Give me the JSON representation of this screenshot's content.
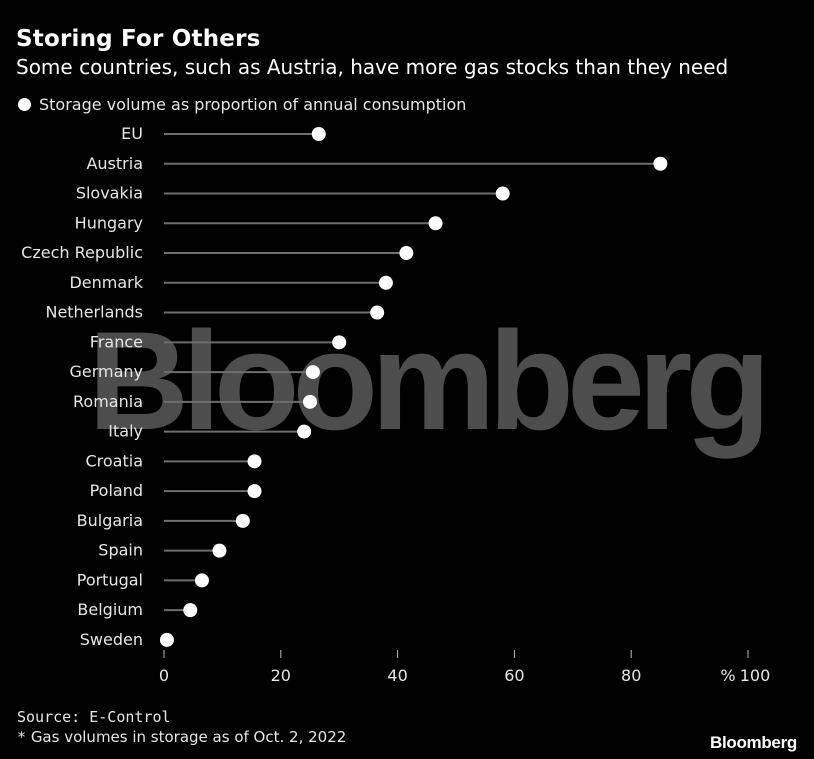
{
  "header": {
    "title": "Storing For Others",
    "subtitle": "Some countries, such as Austria, have more gas stocks than they need"
  },
  "legend": {
    "label": "Storage volume as proportion of annual consumption"
  },
  "footer": {
    "source": "Source: E-Control",
    "footnote_mark": "*",
    "footnote_text": "Gas volumes in storage as of Oct. 2, 2022",
    "brand": "Bloomberg"
  },
  "watermark": "Bloomberg",
  "colors": {
    "background": "#000000",
    "marker": "#ffffff",
    "stem": "#6e6e6e",
    "text": "#e6e6e6"
  },
  "chart_data": {
    "type": "lollipop",
    "title": "Storing For Others",
    "subtitle": "Some countries, such as Austria, have more gas stocks than they need",
    "series": [
      {
        "name": "Storage volume as proportion of annual consumption"
      }
    ],
    "categories": [
      "EU",
      "Austria",
      "Slovakia",
      "Hungary",
      "Czech Republic",
      "Denmark",
      "Netherlands",
      "France",
      "Germany",
      "Romania",
      "Italy",
      "Croatia",
      "Poland",
      "Bulgaria",
      "Spain",
      "Portugal",
      "Belgium",
      "Sweden"
    ],
    "values": [
      26.5,
      85,
      58,
      46.5,
      41.5,
      38,
      36.5,
      30,
      25.5,
      25,
      24,
      15.5,
      15.5,
      13.5,
      9.5,
      6.5,
      4.5,
      0.5
    ],
    "xlim": [
      0,
      100
    ],
    "xticks": [
      0,
      20,
      40,
      60,
      80,
      100
    ],
    "xtick_labels": [
      "0",
      "20",
      "40",
      "60",
      "80",
      "100"
    ],
    "x_unit_label": "%",
    "grid": false
  }
}
